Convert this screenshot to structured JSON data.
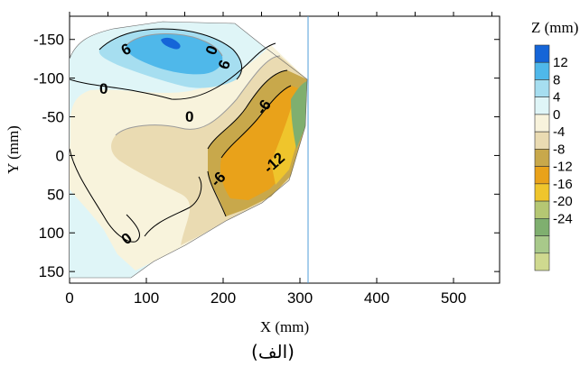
{
  "chart_data": {
    "type": "contour",
    "title": "",
    "xlabel": "X (mm)",
    "ylabel": "Y (mm)",
    "xlim": [
      0,
      560
    ],
    "ylim": [
      165,
      -180
    ],
    "y_axis_inverted": true,
    "x_ticks": [
      0,
      100,
      200,
      300,
      400,
      500
    ],
    "x_tick_labels": [
      "0",
      "100",
      "200",
      "300",
      "400",
      "500"
    ],
    "y_ticks": [
      -150,
      -100,
      -50,
      0,
      50,
      100,
      150
    ],
    "y_tick_labels": [
      "-150",
      "-100",
      "-50",
      "0",
      "50",
      "100",
      "150"
    ],
    "grid": false,
    "colorbar": {
      "title": "Z (mm)",
      "levels": [
        12,
        8,
        4,
        0,
        -4,
        -8,
        -12,
        -16,
        -20,
        -24
      ],
      "labels": [
        "12",
        "8",
        "4",
        "0",
        "-4",
        "-8",
        "-12",
        "-16",
        "-20",
        "-24"
      ],
      "colors": [
        "#1565d8",
        "#4fb8ea",
        "#a6def0",
        "#dff5f7",
        "#f8f3dc",
        "#eadbb2",
        "#c8a84b",
        "#e9a21a",
        "#efc52c",
        "#b5c773",
        "#7faf6f",
        "#a8c98a",
        "#cfd98f"
      ]
    },
    "contour_labels": [
      "6",
      "0",
      "6",
      "0",
      "0",
      "-6",
      "-12",
      "-6",
      "0"
    ],
    "domain_boundary_x_max": 308,
    "caption": "(الف)"
  }
}
